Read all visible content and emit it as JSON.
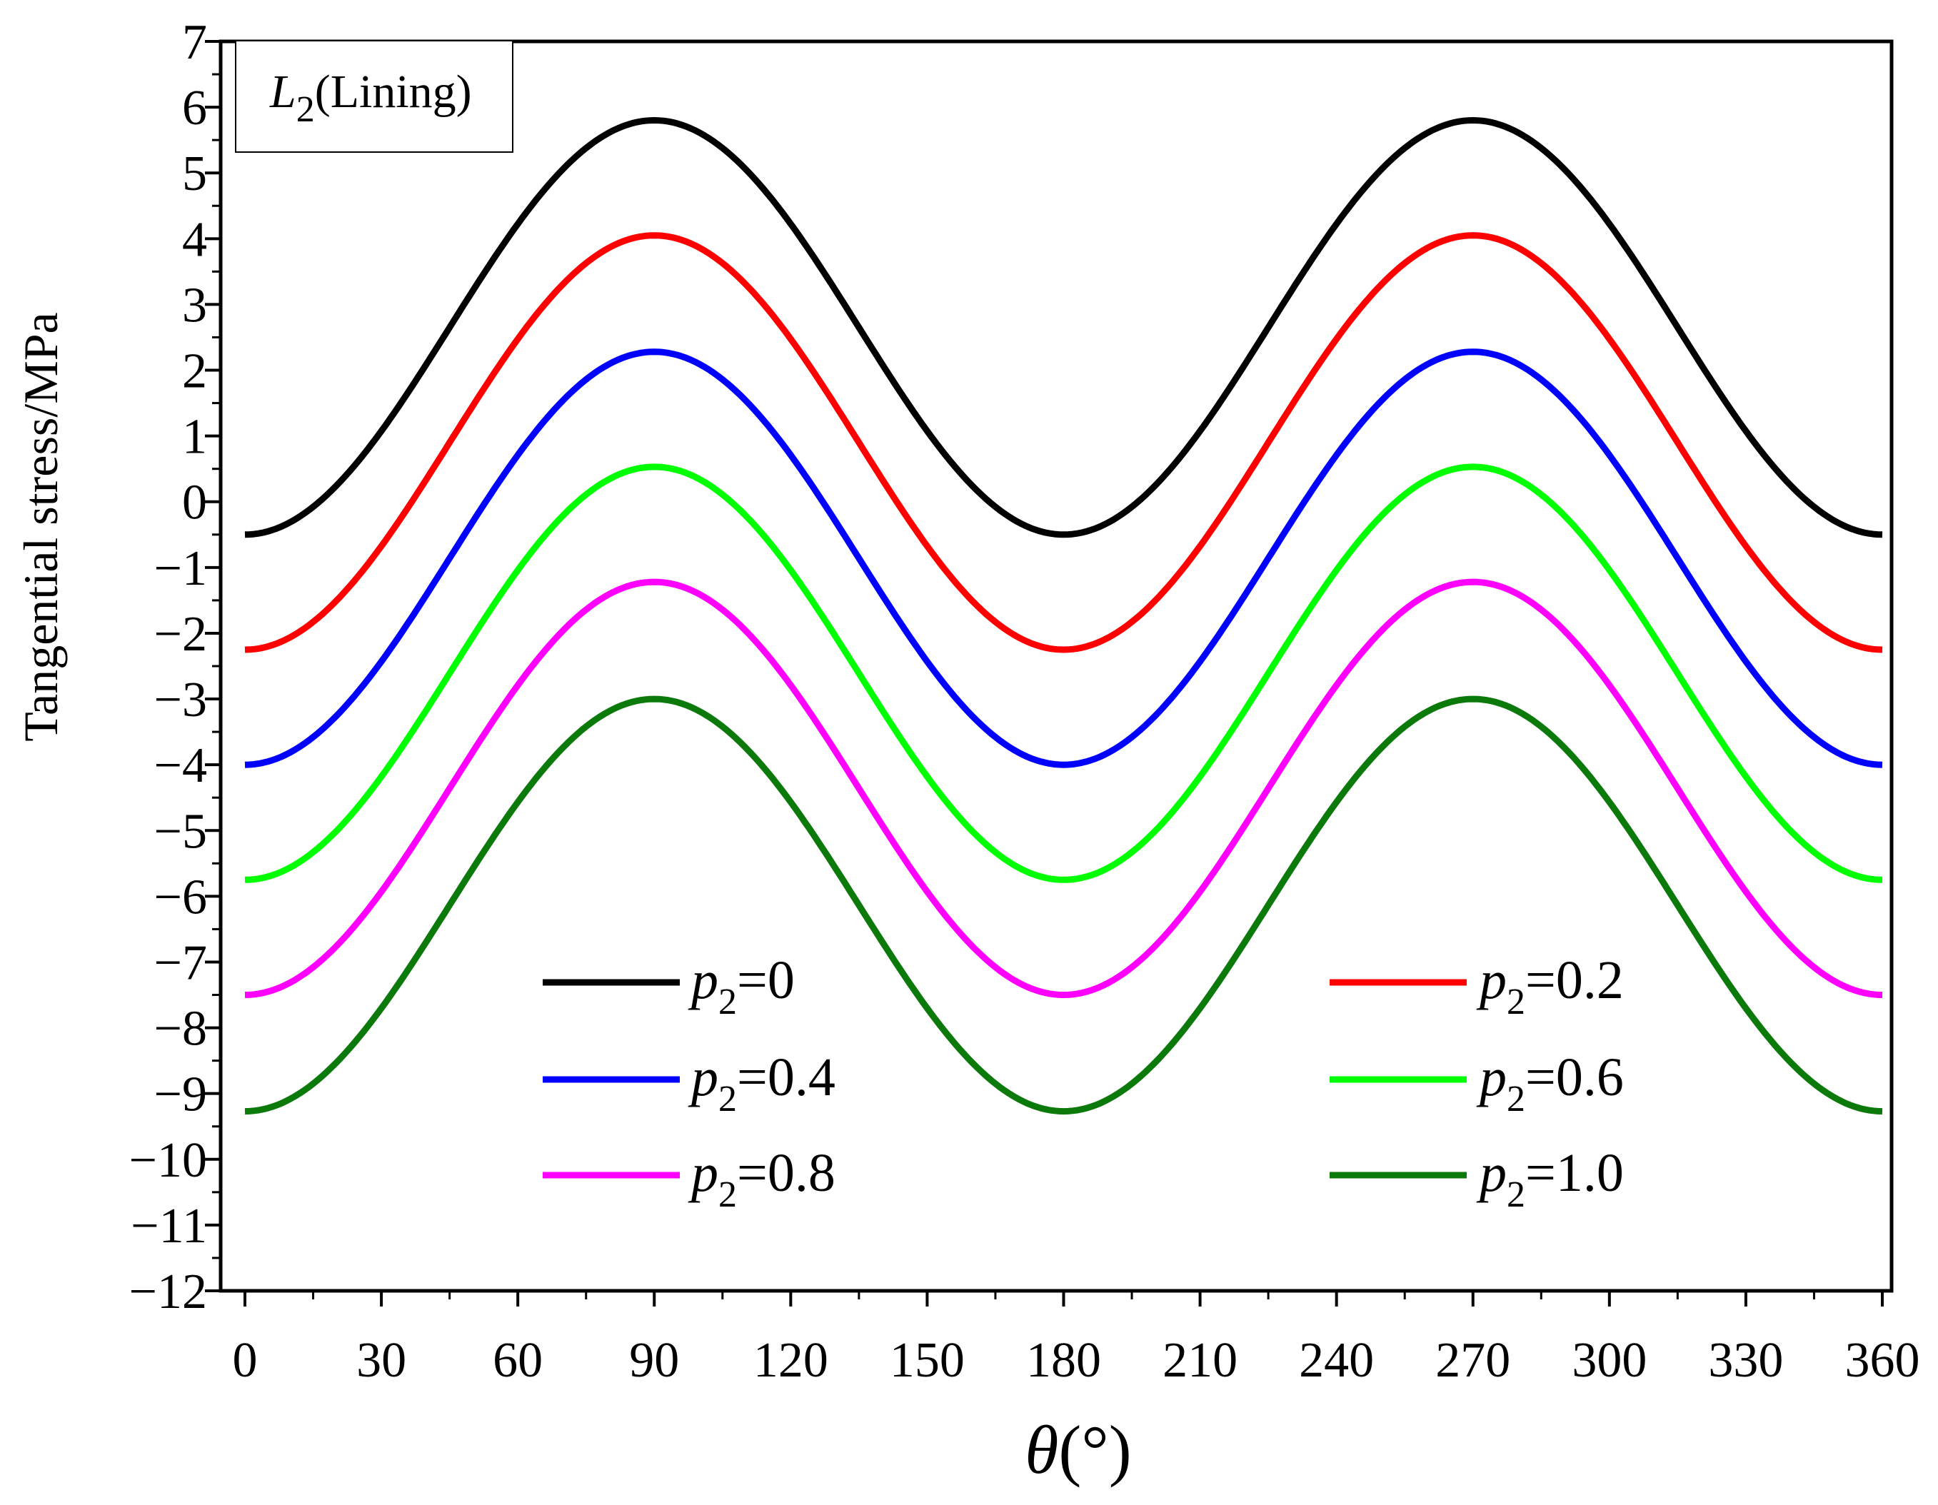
{
  "chart_data": {
    "type": "line",
    "title": "",
    "xlabel_symbol": "θ",
    "xlabel_unit": "(°)",
    "ylabel": "Tangential stress/MPa",
    "xlim": [
      0,
      360
    ],
    "ylim": [
      -12,
      7
    ],
    "xticks": [
      0,
      30,
      60,
      90,
      120,
      150,
      180,
      210,
      240,
      270,
      300,
      330,
      360
    ],
    "yticks": [
      7,
      6,
      5,
      4,
      3,
      2,
      1,
      0,
      -1,
      -2,
      -3,
      -4,
      -5,
      -6,
      -7,
      -8,
      -9,
      -10,
      -11,
      -12
    ],
    "grid": false,
    "annotation": {
      "main": "L",
      "sub": "2",
      "suffix": "(Lining)"
    },
    "legend_symbol": "p",
    "legend_subscript": "2",
    "series": [
      {
        "name": "p2=0",
        "value_label": "=0",
        "color": "#000000",
        "min": -0.5,
        "max": 5.8
      },
      {
        "name": "p2=0.2",
        "value_label": "=0.2",
        "color": "#ff0000",
        "min": -2.25,
        "max": 4.05
      },
      {
        "name": "p2=0.4",
        "value_label": "=0.4",
        "color": "#0000ff",
        "min": -4.0,
        "max": 2.28
      },
      {
        "name": "p2=0.6",
        "value_label": "=0.6",
        "color": "#00ff00",
        "min": -5.75,
        "max": 0.53
      },
      {
        "name": "p2=0.8",
        "value_label": "=0.8",
        "color": "#ff00ff",
        "min": -7.5,
        "max": -1.22
      },
      {
        "name": "p2=1.0",
        "value_label": "=1.0",
        "color": "#0b7a0b",
        "min": -9.27,
        "max": -3.0
      }
    ]
  }
}
